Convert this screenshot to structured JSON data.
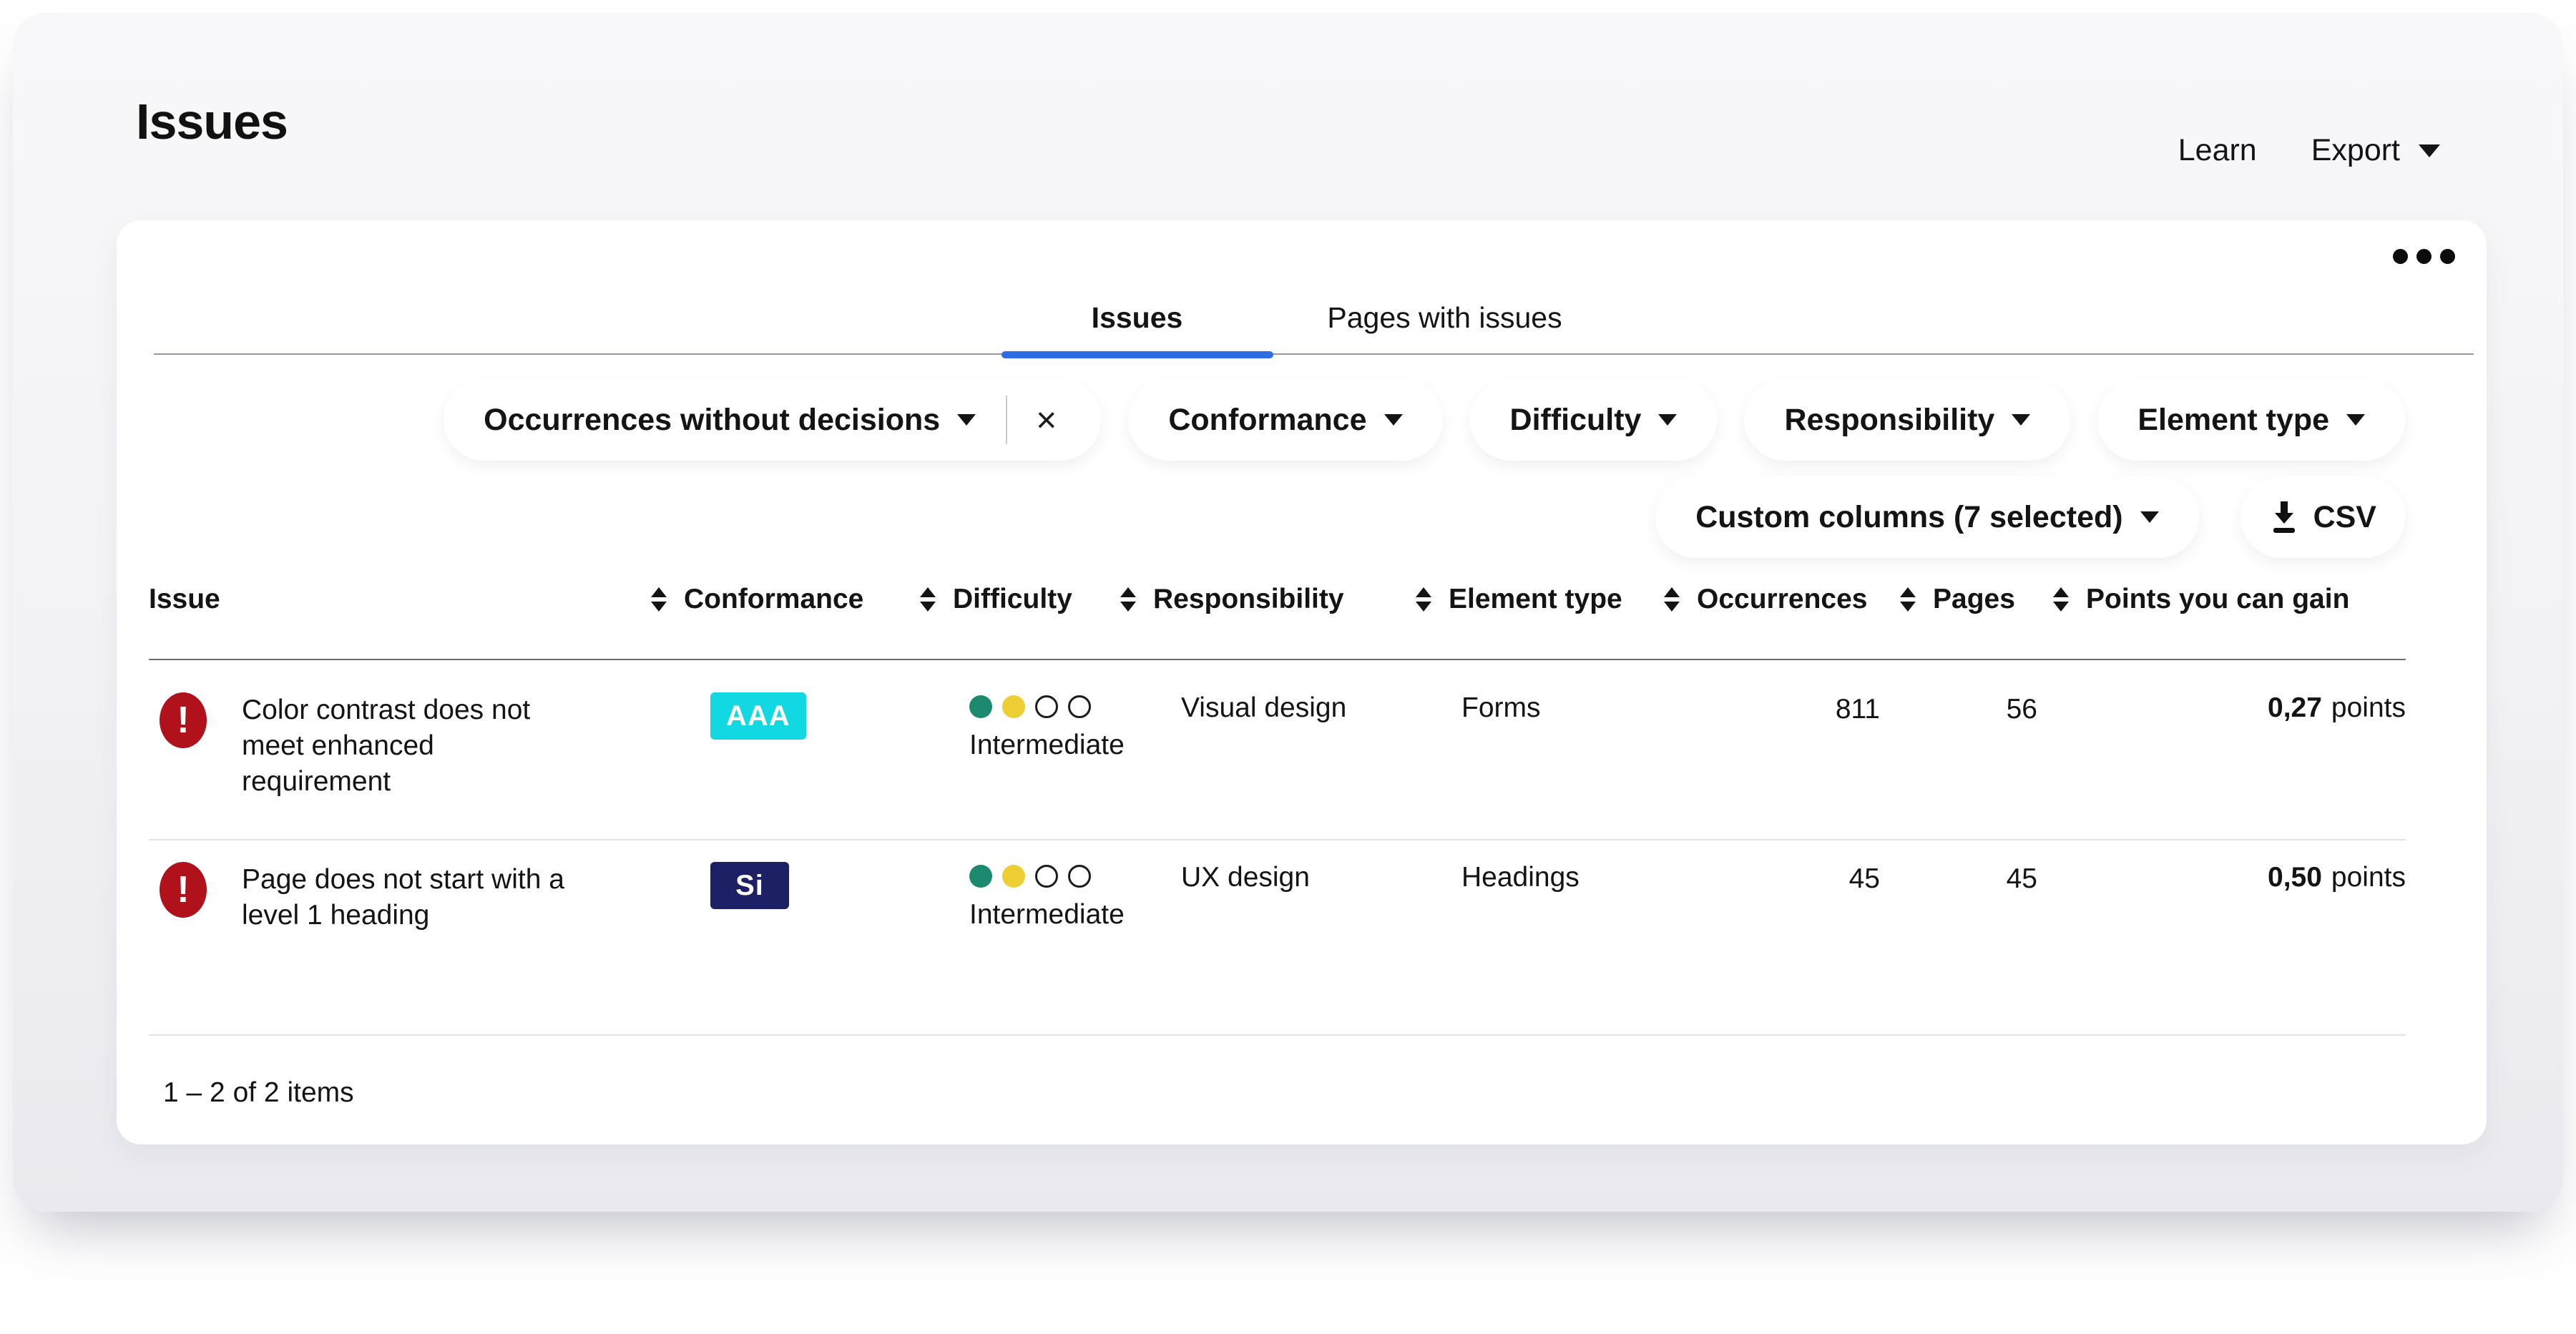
{
  "page_title": "Issues",
  "actions": {
    "learn": "Learn",
    "export": "Export"
  },
  "icons": {
    "export_caret": "chevron-down",
    "more_menu": "ellipsis-horizontal",
    "filter_caret": "chevron-down",
    "remove_filter": "close-x",
    "csv_download": "download-arrow",
    "sort": "sort-up-down",
    "severity": "error-exclamation-circle"
  },
  "card": {
    "tabs": [
      {
        "label": "Issues",
        "active": true
      },
      {
        "label": "Pages with issues",
        "active": false
      }
    ],
    "filters": {
      "active_filter": {
        "label": "Occurrences without decisions",
        "remove": "×"
      },
      "dropdowns": [
        "Conformance",
        "Difficulty",
        "Responsibility",
        "Element type"
      ],
      "custom_columns_label": "Custom columns (7 selected)",
      "csv_label": "CSV"
    },
    "table": {
      "columns": [
        "Issue",
        "Conformance",
        "Difficulty",
        "Responsibility",
        "Element type",
        "Occurrences",
        "Pages",
        "Points you can gain"
      ],
      "rows": [
        {
          "severity": "error",
          "issue": "Color contrast does not meet enhanced requirement",
          "conformance": "AAA",
          "difficulty": {
            "label": "Intermediate",
            "dots": [
              "teal",
              "yellow",
              "empty",
              "empty"
            ]
          },
          "responsibility": "Visual design",
          "element_type": "Forms",
          "occurrences": "811",
          "pages": "56",
          "points_value": "0,27",
          "points_unit": "points"
        },
        {
          "severity": "error",
          "issue": "Page does not start with a level 1 heading",
          "conformance": "Si",
          "difficulty": {
            "label": "Intermediate",
            "dots": [
              "teal",
              "yellow",
              "empty",
              "empty"
            ]
          },
          "responsibility": "UX design",
          "element_type": "Headings",
          "occurrences": "45",
          "pages": "45",
          "points_value": "0,50",
          "points_unit": "points"
        }
      ],
      "summary": "1 – 2 of 2 items"
    }
  },
  "colors": {
    "tab_active_underline": "#2e6ce5",
    "error_red": "#b0111a",
    "badge_aaa_cyan": "#12d8e2",
    "badge_si_navy": "#1d2064",
    "dot_teal": "#1b8a6e",
    "dot_yellow": "#eecf33",
    "panel_gray_top": "#f8f8fa",
    "panel_gray_bottom": "#e9e9ef",
    "text": "#141415"
  }
}
